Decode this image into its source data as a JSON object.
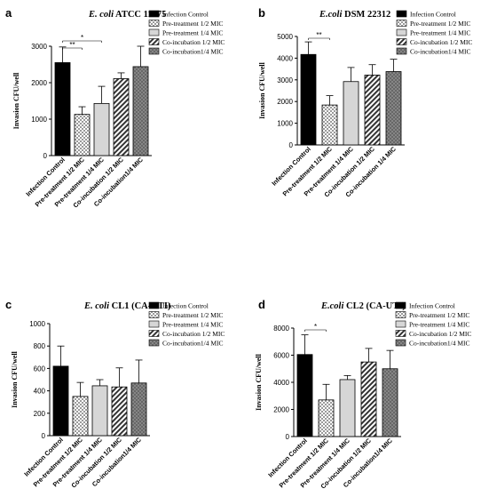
{
  "colors": {
    "solid": "#000000",
    "gray": "#d6d6d6",
    "axis": "#000000"
  },
  "legend_labels": [
    "Infection Control",
    "Pre-treatment 1/2 MIC",
    "Pre-treatment 1/4 MIC",
    "Co-incubation 1/2 MIC",
    "Co-incubation1/4 MIC"
  ],
  "chart_data": [
    {
      "type": "bar",
      "panel_letter": "a",
      "title_italic": "E. coli",
      "title_rest": " ATCC 11775",
      "ylabel": "Invasion CFU/well",
      "ylim": [
        0,
        3000
      ],
      "yticks": [
        0,
        1000,
        2000,
        3000
      ],
      "categories": [
        "Infection Control",
        "Pre-treatment 1/2 MIC",
        "Pre-treatment 1/4 MIC",
        "Co-incubation 1/2 MIC",
        "Co-incubation1/4 MIC"
      ],
      "patterns": [
        "solid",
        "check",
        "gray",
        "diag",
        "cross"
      ],
      "legend": [
        "Infection Control",
        "Pre-treatment 1/2 MIC",
        "Pre-treatment 1/4 MIC",
        "Co-incubation 1/2 MIC",
        "Co-incubation1/4 MIC"
      ],
      "values": [
        2550,
        1130,
        1430,
        2110,
        2440
      ],
      "errors": [
        430,
        210,
        470,
        160,
        560
      ],
      "significance": [
        {
          "from": 0,
          "to": 1,
          "label": "**",
          "level": 1
        },
        {
          "from": 0,
          "to": 2,
          "label": "*",
          "level": 2
        }
      ]
    },
    {
      "type": "bar",
      "panel_letter": "b",
      "title_italic": "E.coli",
      "title_rest": " DSM 22312",
      "ylabel": "Invasion CFU/well",
      "ylim": [
        0,
        5000
      ],
      "yticks": [
        0,
        1000,
        2000,
        3000,
        4000,
        5000
      ],
      "categories": [
        "Infection Control",
        "Pre-treatment 1/2 MIC",
        "Pre-treatment 1/4 MIC",
        "Co-incubation 1/2 MIC",
        "Co-incubation 1/4 MIC"
      ],
      "patterns": [
        "solid",
        "check",
        "gray",
        "diag",
        "cross"
      ],
      "legend": [
        "Infection Control",
        "Pre-treatment 1/2 MIC",
        "Pre-treatment 1/4 MIC",
        "Co-incubation 1/2 MIC",
        "Co-incubation1/4 MIC"
      ],
      "values": [
        4170,
        1840,
        2920,
        3220,
        3380
      ],
      "errors": [
        580,
        430,
        650,
        480,
        570
      ],
      "significance": [
        {
          "from": 0,
          "to": 1,
          "label": "**",
          "level": 1
        }
      ]
    },
    {
      "type": "bar",
      "panel_letter": "c",
      "title_italic": "E. coli",
      "title_rest": " CL1 (CA-UTI)",
      "ylabel": "Invasion CFU/well",
      "ylim": [
        0,
        1000
      ],
      "yticks": [
        0,
        200,
        400,
        600,
        800,
        1000
      ],
      "categories": [
        "Infection Control",
        "Pre-treatment 1/2 MIC",
        "Pre-treatment 1/4 MIC",
        "Co-incubation 1/2 MIC",
        "Co-incubation1/4 MIC"
      ],
      "patterns": [
        "solid",
        "check",
        "gray",
        "diag",
        "cross"
      ],
      "legend": [
        "Infection Control",
        "Pre-treatment 1/2 MIC",
        "Pre-treatment 1/4 MIC",
        "Co-incubation 1/2 MIC",
        "Co-incubation1/4 MIC"
      ],
      "values": [
        620,
        350,
        445,
        435,
        470
      ],
      "errors": [
        180,
        125,
        55,
        170,
        205
      ],
      "significance": []
    },
    {
      "type": "bar",
      "panel_letter": "d",
      "title_italic": "E.coli",
      "title_rest": " CL2 (CA-UTI)",
      "ylabel": "Invasion CFU/well",
      "ylim": [
        0,
        8000
      ],
      "yticks": [
        0,
        2000,
        4000,
        6000,
        8000
      ],
      "categories": [
        "Infection Control",
        "Pre-treatment 1/2 MIC",
        "Pre-treatment 1/4 MIC",
        "Co-incubation 1/2 MIC",
        "Co-incubation1/4 MIC"
      ],
      "patterns": [
        "solid",
        "check",
        "gray",
        "diag",
        "cross"
      ],
      "legend": [
        "Infection Control",
        "Pre-treatment 1/2 MIC",
        "Pre-treatment 1/4 MIC",
        "Co-incubation 1/2 MIC",
        "Co-incubation1/4 MIC"
      ],
      "values": [
        6050,
        2700,
        4200,
        5500,
        5000
      ],
      "errors": [
        1450,
        1150,
        300,
        1000,
        1350
      ],
      "significance": [
        {
          "from": 0,
          "to": 1,
          "label": "*",
          "level": 1
        }
      ]
    }
  ]
}
